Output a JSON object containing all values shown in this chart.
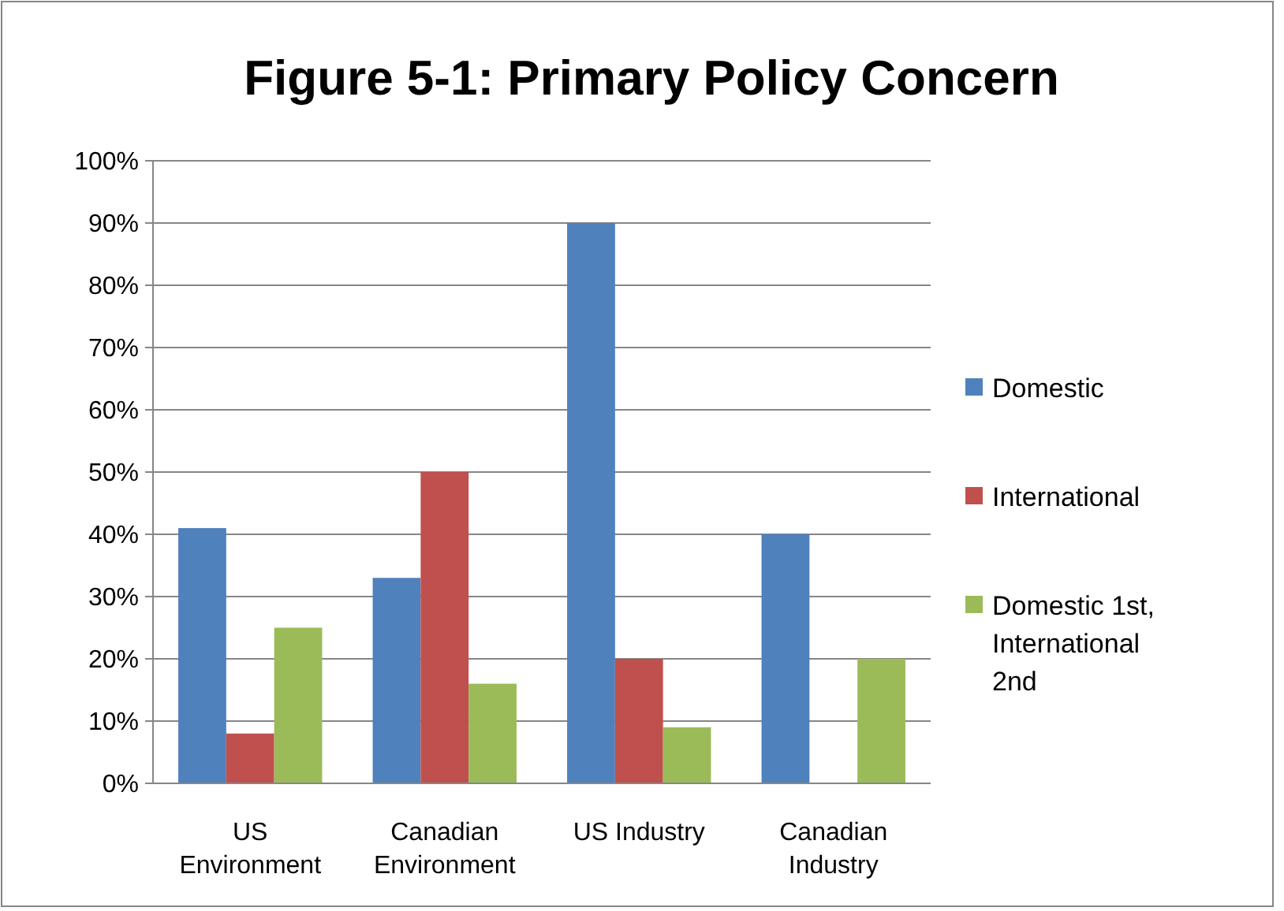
{
  "chart_data": {
    "type": "bar",
    "title": "Figure 5-1: Primary Policy Concern",
    "categories": [
      "US Environment",
      "Canadian Environment",
      "US Industry",
      "Canadian Industry"
    ],
    "series": [
      {
        "name": "Domestic",
        "color": "#4f81bd",
        "values": [
          41,
          33,
          90,
          40
        ]
      },
      {
        "name": "International",
        "color": "#c0504d",
        "values": [
          8,
          50,
          20,
          0
        ]
      },
      {
        "name": "Domestic 1st, International 2nd",
        "color": "#9bbb59",
        "values": [
          25,
          16,
          9,
          20
        ]
      }
    ],
    "ylim": [
      0,
      100
    ],
    "yticks": [
      {
        "value": 0,
        "label": "0%"
      },
      {
        "value": 10,
        "label": "10%"
      },
      {
        "value": 20,
        "label": "20%"
      },
      {
        "value": 30,
        "label": "30%"
      },
      {
        "value": 40,
        "label": "40%"
      },
      {
        "value": 50,
        "label": "50%"
      },
      {
        "value": 60,
        "label": "60%"
      },
      {
        "value": 70,
        "label": "70%"
      },
      {
        "value": 80,
        "label": "80%"
      },
      {
        "value": 90,
        "label": "90%"
      },
      {
        "value": 100,
        "label": "100%"
      }
    ],
    "grid": "y",
    "legend": "right"
  }
}
